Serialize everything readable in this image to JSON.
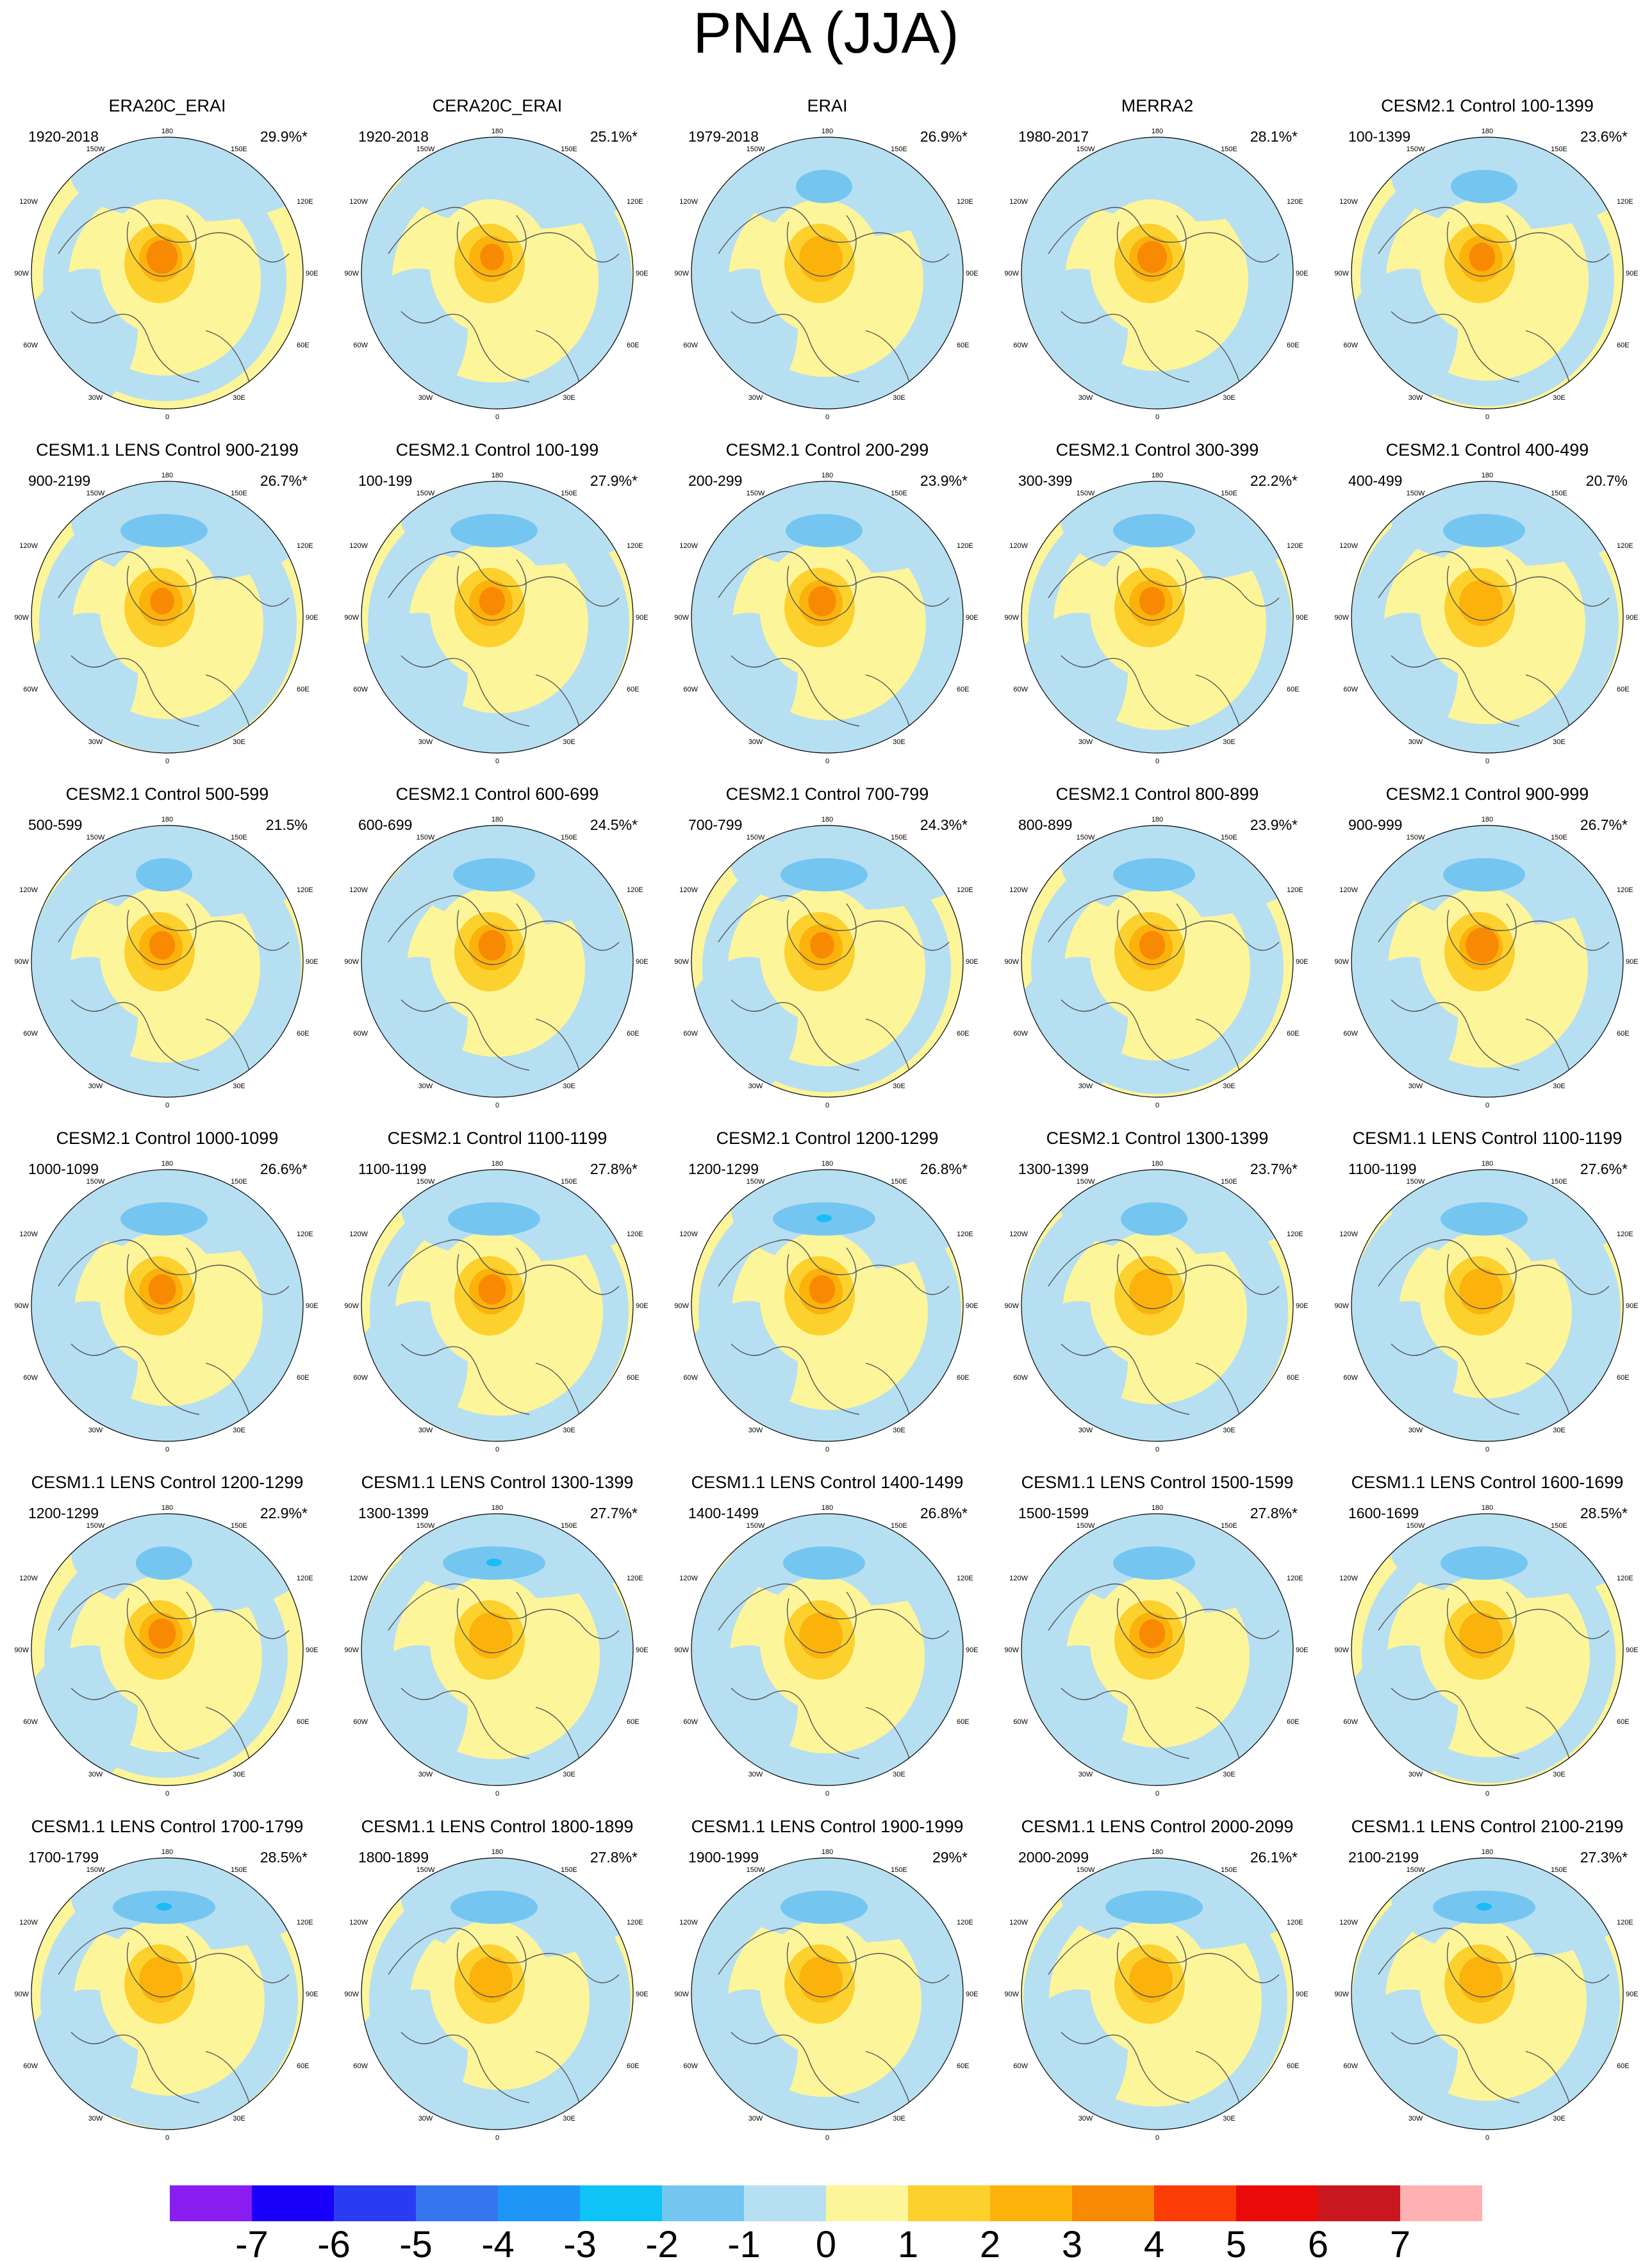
{
  "title": "PNA (JJA)",
  "colors": {
    "ocean_negative_weak": "#b7dff2",
    "land_positive_weak": "#fdf59a",
    "positive_1_2": "#fcd12e",
    "positive_2_3": "#fbb20b",
    "positive_3_4": "#f88a03",
    "negative_1_2": "#74c6f0",
    "negative_2_3": "#19bdf3"
  },
  "panels": [
    {
      "title": "ERA20C_ERAI",
      "period": "1920-2018",
      "pct": "29.9%*",
      "neg_strength": 0.2,
      "pos_strength": 3.6
    },
    {
      "title": "CERA20C_ERAI",
      "period": "1920-2018",
      "pct": "25.1%*",
      "neg_strength": 0.2,
      "pos_strength": 3.2
    },
    {
      "title": "ERAI",
      "period": "1979-2018",
      "pct": "26.9%*",
      "neg_strength": 1.1,
      "pos_strength": 2.9
    },
    {
      "title": "MERRA2",
      "period": "1980-2017",
      "pct": "28.1%*",
      "neg_strength": 0.6,
      "pos_strength": 3.5
    },
    {
      "title": "CESM2.1 Control 100-1399",
      "period": "100-1399",
      "pct": "23.6%*",
      "neg_strength": 1.3,
      "pos_strength": 3.3
    },
    {
      "title": "CESM1.1 LENS Control 900-2199",
      "period": "900-2199",
      "pct": "26.7%*",
      "neg_strength": 1.7,
      "pos_strength": 3.2
    },
    {
      "title": "CESM2.1 Control 100-199",
      "period": "100-199",
      "pct": "27.9%*",
      "neg_strength": 1.7,
      "pos_strength": 3.3
    },
    {
      "title": "CESM2.1 Control 200-299",
      "period": "200-299",
      "pct": "23.9%*",
      "neg_strength": 1.5,
      "pos_strength": 3.4
    },
    {
      "title": "CESM2.1 Control 300-399",
      "period": "300-399",
      "pct": "22.2%*",
      "neg_strength": 1.6,
      "pos_strength": 3.3
    },
    {
      "title": "CESM2.1 Control 400-499",
      "period": "400-499",
      "pct": "20.7%",
      "neg_strength": 1.6,
      "pos_strength": 2.4
    },
    {
      "title": "CESM2.1 Control 500-599",
      "period": "500-599",
      "pct": "21.5%",
      "neg_strength": 1.1,
      "pos_strength": 3.3
    },
    {
      "title": "CESM2.1 Control 600-699",
      "period": "600-699",
      "pct": "24.5%*",
      "neg_strength": 1.6,
      "pos_strength": 3.4
    },
    {
      "title": "CESM2.1 Control 700-799",
      "period": "700-799",
      "pct": "24.3%*",
      "neg_strength": 1.7,
      "pos_strength": 3.2
    },
    {
      "title": "CESM2.1 Control 800-899",
      "period": "800-899",
      "pct": "23.9%*",
      "neg_strength": 1.6,
      "pos_strength": 3.3
    },
    {
      "title": "CESM2.1 Control 900-999",
      "period": "900-999",
      "pct": "26.7%*",
      "neg_strength": 1.6,
      "pos_strength": 3.7
    },
    {
      "title": "CESM2.1 Control 1000-1099",
      "period": "1000-1099",
      "pct": "26.6%*",
      "neg_strength": 1.7,
      "pos_strength": 3.4
    },
    {
      "title": "CESM2.1 Control 1100-1199",
      "period": "1100-1199",
      "pct": "27.8%*",
      "neg_strength": 1.8,
      "pos_strength": 3.4
    },
    {
      "title": "CESM2.1 Control 1200-1299",
      "period": "1200-1299",
      "pct": "26.8%*",
      "neg_strength": 2.1,
      "pos_strength": 3.3
    },
    {
      "title": "CESM2.1 Control 1300-1399",
      "period": "1300-1399",
      "pct": "23.7%*",
      "neg_strength": 1.3,
      "pos_strength": 2.5
    },
    {
      "title": "CESM1.1 LENS Control 1100-1199",
      "period": "1100-1199",
      "pct": "27.6%*",
      "neg_strength": 1.7,
      "pos_strength": 2.6
    },
    {
      "title": "CESM1.1 LENS Control 1200-1299",
      "period": "1200-1299",
      "pct": "22.9%*",
      "neg_strength": 1.1,
      "pos_strength": 3.4
    },
    {
      "title": "CESM1.1 LENS Control 1300-1399",
      "period": "1300-1399",
      "pct": "27.7%*",
      "neg_strength": 2.1,
      "pos_strength": 2.4
    },
    {
      "title": "CESM1.1 LENS Control 1400-1499",
      "period": "1400-1499",
      "pct": "26.8%*",
      "neg_strength": 1.6,
      "pos_strength": 2.6
    },
    {
      "title": "CESM1.1 LENS Control 1500-1599",
      "period": "1500-1599",
      "pct": "27.8%*",
      "neg_strength": 1.6,
      "pos_strength": 3.3
    },
    {
      "title": "CESM1.1 LENS Control 1600-1699",
      "period": "1600-1699",
      "pct": "28.5%*",
      "neg_strength": 1.7,
      "pos_strength": 2.6
    },
    {
      "title": "CESM1.1 LENS Control 1700-1799",
      "period": "1700-1799",
      "pct": "28.5%*",
      "neg_strength": 2.2,
      "pos_strength": 2.3
    },
    {
      "title": "CESM1.1 LENS Control 1800-1899",
      "period": "1800-1899",
      "pct": "27.8%*",
      "neg_strength": 1.7,
      "pos_strength": 2.6
    },
    {
      "title": "CESM1.1 LENS Control 1900-1999",
      "period": "1900-1999",
      "pct": "29%*",
      "neg_strength": 1.7,
      "pos_strength": 2.6
    },
    {
      "title": "CESM1.1 LENS Control 2000-2099",
      "period": "2000-2099",
      "pct": "26.1%*",
      "neg_strength": 1.9,
      "pos_strength": 2.6
    },
    {
      "title": "CESM1.1 LENS Control 2100-2199",
      "period": "2100-2199",
      "pct": "27.3%*",
      "neg_strength": 2.1,
      "pos_strength": 2.5
    }
  ],
  "map_labels": {
    "lon_top": "180",
    "lon_150w": "150W",
    "lon_150e": "150E",
    "lon_120w": "120W",
    "lon_120e": "120E",
    "lon_90w": "90W",
    "lon_90e": "90E",
    "lon_60w": "60W",
    "lon_60e": "60E",
    "lon_30w": "30W",
    "lon_30e": "30E",
    "lon_bottom": "0"
  },
  "chart_data": {
    "type": "heatmap",
    "title": "PNA (JJA)",
    "colorbar": {
      "labels": [
        "-7",
        "-6",
        "-5",
        "-4",
        "-3",
        "-2",
        "-1",
        "0",
        "1",
        "2",
        "3",
        "4",
        "5",
        "6",
        "7"
      ],
      "colors": [
        "#8a1ef1",
        "#1a00fb",
        "#2a3cf2",
        "#3576ee",
        "#1e96f7",
        "#0fc3f6",
        "#74c6f0",
        "#b7dff2",
        "#fdf59a",
        "#fcd12e",
        "#fbb20b",
        "#f88a03",
        "#fb3c05",
        "#ea0a09",
        "#c9171f",
        "#feb1b3"
      ]
    }
  }
}
